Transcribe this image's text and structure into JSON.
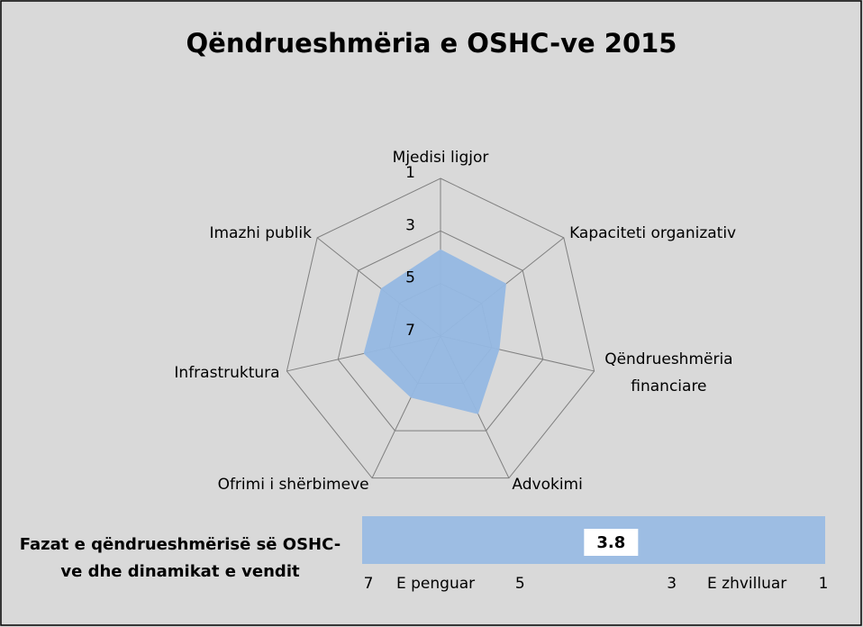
{
  "chart_data": [
    {
      "type": "radar",
      "title": "Qëndrueshmëria e OSHC-ve 2015",
      "categories": [
        "Mjedisi ligjor",
        "Kapaciteti organizativ",
        "Qëndrueshmëria financiare",
        "Advokimi",
        "Ofrimi i shërbimeve",
        "Infrastruktura",
        "Imazhi publik"
      ],
      "values": [
        3.7,
        3.8,
        4.7,
        3.7,
        4.4,
        4.0,
        4.1
      ],
      "color": "#95b8e3",
      "rlim": [
        7,
        1
      ],
      "rticks": [
        1,
        3,
        5,
        7
      ],
      "grid": true
    },
    {
      "type": "indicator",
      "title": "Fazat e qëndrueshmërisë së OSHC-ve dhe dinamikat e vendit",
      "values": [
        3.8
      ],
      "color": "#9dbde3",
      "xlim": [
        7,
        1
      ],
      "xticks": [
        7,
        5,
        3,
        1
      ],
      "annotations": [
        "E penguar",
        "E zhvilluar"
      ]
    }
  ]
}
